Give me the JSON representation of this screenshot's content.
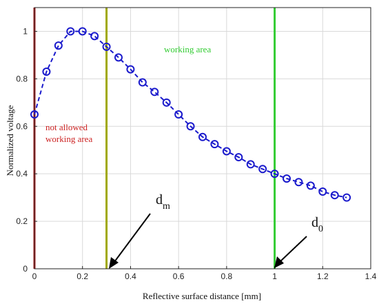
{
  "chart_data": {
    "type": "scatter",
    "xlabel": "Reflective surface distance [mm]",
    "ylabel": "Normalized voltage",
    "xlim": [
      0,
      1.4
    ],
    "ylim": [
      0,
      1.1
    ],
    "xticks": [
      0,
      0.2,
      0.4,
      0.6,
      0.8,
      1,
      1.2,
      1.4
    ],
    "xtick_labels": [
      "0",
      "0.2",
      "0.4",
      "0.6",
      "0.8",
      "1",
      "1.2",
      "1.4"
    ],
    "yticks": [
      0,
      0.2,
      0.4,
      0.6,
      0.8,
      1
    ],
    "ytick_labels": [
      "0",
      "0.2",
      "0.4",
      "0.6",
      "0.8",
      "1"
    ],
    "grid": true,
    "series": [
      {
        "marker": "circle",
        "line": "dashed",
        "color": "#1a1acc",
        "x": [
          0,
          0.05,
          0.1,
          0.15,
          0.2,
          0.25,
          0.3,
          0.35,
          0.4,
          0.45,
          0.5,
          0.55,
          0.6,
          0.65,
          0.7,
          0.75,
          0.8,
          0.85,
          0.9,
          0.95,
          1.0,
          1.05,
          1.1,
          1.15,
          1.2,
          1.25,
          1.3
        ],
        "y": [
          0.65,
          0.83,
          0.94,
          1.0,
          1.0,
          0.98,
          0.935,
          0.89,
          0.84,
          0.785,
          0.745,
          0.7,
          0.65,
          0.6,
          0.555,
          0.525,
          0.495,
          0.47,
          0.44,
          0.42,
          0.4,
          0.38,
          0.365,
          0.35,
          0.325,
          0.31,
          0.3
        ]
      }
    ],
    "vertical_lines": [
      {
        "x": 0,
        "color": "#b22222"
      },
      {
        "x": 0.3,
        "color": "#a0a800"
      },
      {
        "x": 1.0,
        "color": "#33cc33"
      }
    ],
    "annotations": {
      "not_allowed_line1": "not allowed",
      "not_allowed_line2": "working area",
      "working_area": "working area",
      "dm_main": "d",
      "dm_sub": "m",
      "d0_main": "d",
      "d0_sub": "0"
    },
    "colors": {
      "not_allowed": "#cc2222",
      "working": "#33cc33",
      "arrow": "#000000"
    }
  }
}
